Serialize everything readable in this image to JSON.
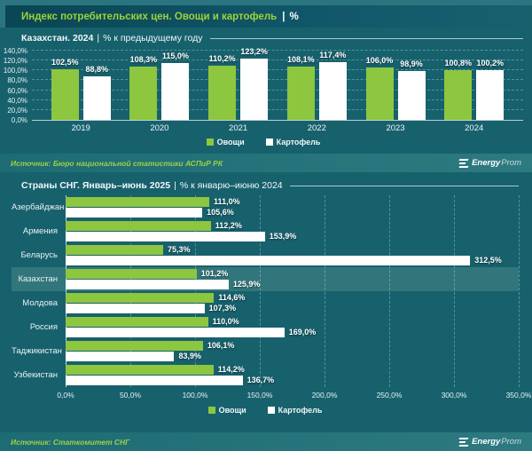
{
  "header": {
    "title": "Индекс потребительских цен. Овощи и картофель",
    "separator": "|",
    "unit": "%"
  },
  "sources": {
    "top": "Источник: Бюро национальной статистики АСПиР РК",
    "bottom": "Источник: Статкомитет СНГ"
  },
  "logo": {
    "bold": "Energy",
    "light": "Prom"
  },
  "colors": {
    "background": "#17616d",
    "title_strip": "#0a4654",
    "accent_green": "#8dc63f",
    "bar_white": "#ffffff",
    "title_text_green": "#9fd239",
    "source_text_green": "#9bd245",
    "gridline": "rgba(150,210,220,0.45)",
    "highlight_row": "rgba(190,230,200,0.16)"
  },
  "chart_data": [
    {
      "type": "bar",
      "title": "Казахстан. 2024",
      "separator": "|",
      "subtitle": "% к предыдущему году",
      "categories": [
        "2019",
        "2020",
        "2021",
        "2022",
        "2023",
        "2024"
      ],
      "series": [
        {
          "name": "Овощи",
          "color": "#8dc63f",
          "values": [
            102.5,
            108.3,
            110.2,
            108.1,
            106.0,
            100.8
          ],
          "labels": [
            "102,5%",
            "108,3%",
            "110,2%",
            "108,1%",
            "106,0%",
            "100,8%"
          ]
        },
        {
          "name": "Картофель",
          "color": "#ffffff",
          "values": [
            88.8,
            115.0,
            123.2,
            117.4,
            98.9,
            100.2
          ],
          "labels": [
            "88,8%",
            "115,0%",
            "123,2%",
            "117,4%",
            "98,9%",
            "100,2%"
          ]
        }
      ],
      "ylim": [
        0,
        140
      ],
      "yticks": {
        "values": [
          0,
          20,
          40,
          60,
          80,
          100,
          120,
          140
        ],
        "labels": [
          "0,0%",
          "20,0%",
          "40,0%",
          "60,0%",
          "80,0%",
          "100,0%",
          "120,0%",
          "140,0%"
        ]
      },
      "grid": "horizontal-dashed",
      "legend_position": "bottom"
    },
    {
      "type": "bar-horizontal",
      "title": "Страны СНГ. Январь–июнь 2025",
      "separator": "|",
      "subtitle": "% к январю–июню 2024",
      "categories": [
        "Азербайджан",
        "Армения",
        "Беларусь",
        "Казахстан",
        "Молдова",
        "Россия",
        "Таджикистан",
        "Узбекистан"
      ],
      "highlight_category": "Казахстан",
      "series": [
        {
          "name": "Овощи",
          "color": "#8dc63f",
          "values": [
            111.0,
            112.2,
            75.3,
            101.2,
            114.6,
            110.0,
            106.1,
            114.2
          ],
          "labels": [
            "111,0%",
            "112,2%",
            "75,3%",
            "101,2%",
            "114,6%",
            "110,0%",
            "106,1%",
            "114,2%"
          ]
        },
        {
          "name": "Картофель",
          "color": "#ffffff",
          "values": [
            105.6,
            153.9,
            312.5,
            125.9,
            107.3,
            169.0,
            83.9,
            136.7
          ],
          "labels": [
            "105,6%",
            "153,9%",
            "312,5%",
            "125,9%",
            "107,3%",
            "169,0%",
            "83,9%",
            "136,7%"
          ]
        }
      ],
      "xlim": [
        0,
        350
      ],
      "xticks": {
        "values": [
          0,
          50,
          100,
          150,
          200,
          250,
          300,
          350
        ],
        "labels": [
          "0,0%",
          "50,0%",
          "100,0%",
          "150,0%",
          "200,0%",
          "250,0%",
          "300,0%",
          "350,0%"
        ]
      },
      "grid": "vertical-dashed",
      "legend_position": "bottom"
    }
  ]
}
